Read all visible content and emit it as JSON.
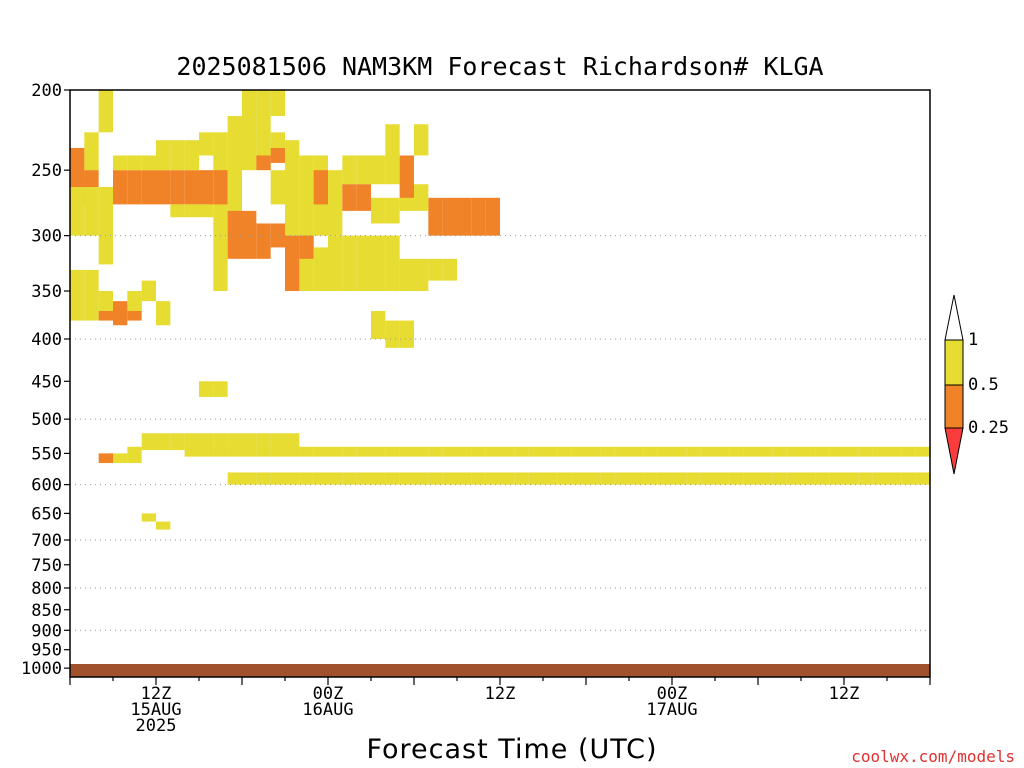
{
  "chart_data": {
    "type": "heatmap",
    "title": "2025081506 NAM3KM Forecast Richardson# KLGA",
    "xlabel": "Forecast Time (UTC)",
    "ylabel": "",
    "credit": "coolwx.com/models",
    "x_start_hours_from_init": 0,
    "x_end_hours_from_init": 60,
    "x_ticks": [
      {
        "hours_from_init": 6,
        "lines": [
          "12Z",
          "15AUG",
          "2025"
        ]
      },
      {
        "hours_from_init": 18,
        "lines": [
          "00Z",
          "16AUG"
        ]
      },
      {
        "hours_from_init": 30,
        "lines": [
          "12Z"
        ]
      },
      {
        "hours_from_init": 42,
        "lines": [
          "00Z",
          "17AUG"
        ]
      },
      {
        "hours_from_init": 54,
        "lines": [
          "12Z"
        ]
      }
    ],
    "y_scale": "log",
    "y_axis_inverted": true,
    "ylim": [
      1025,
      200
    ],
    "y_ticks": [
      200,
      250,
      300,
      350,
      400,
      450,
      500,
      550,
      600,
      650,
      700,
      750,
      800,
      850,
      900,
      950,
      1000
    ],
    "grid": {
      "horizontal_dotted": true,
      "levels": [
        300,
        400,
        500,
        600,
        700,
        800,
        900
      ]
    },
    "colorbar": {
      "location": "right",
      "tick_labels": [
        "1",
        "0.5",
        "0.25"
      ],
      "bins": [
        {
          "range": "> 1",
          "color": "#ffffff"
        },
        {
          "range": "0.5 - 1",
          "color": "#e6dc32"
        },
        {
          "range": "0.25 - 0.5",
          "color": "#f08228"
        },
        {
          "range": "< 0.25",
          "color": "#fa3c3c"
        }
      ]
    },
    "surface_color": "#a0522d",
    "cell_width_hours": 1,
    "cells": [
      [
        2,
        200,
        225,
        "y"
      ],
      [
        1,
        225,
        250,
        "y"
      ],
      [
        0,
        235,
        262,
        "o"
      ],
      [
        0,
        250,
        275,
        "o"
      ],
      [
        1,
        250,
        262,
        "o"
      ],
      [
        0,
        262,
        300,
        "y"
      ],
      [
        1,
        262,
        300,
        "y"
      ],
      [
        2,
        262,
        325,
        "y"
      ],
      [
        3,
        250,
        275,
        "o"
      ],
      [
        4,
        250,
        275,
        "o"
      ],
      [
        5,
        250,
        275,
        "o"
      ],
      [
        6,
        250,
        275,
        "o"
      ],
      [
        7,
        250,
        275,
        "o"
      ],
      [
        8,
        250,
        275,
        "o"
      ],
      [
        9,
        250,
        275,
        "o"
      ],
      [
        3,
        240,
        250,
        "y"
      ],
      [
        4,
        240,
        250,
        "y"
      ],
      [
        5,
        240,
        250,
        "y"
      ],
      [
        6,
        230,
        250,
        "y"
      ],
      [
        7,
        230,
        250,
        "y"
      ],
      [
        8,
        230,
        250,
        "y"
      ],
      [
        8,
        275,
        285,
        "y"
      ],
      [
        7,
        275,
        285,
        "y"
      ],
      [
        9,
        275,
        285,
        "y"
      ],
      [
        9,
        225,
        240,
        "y"
      ],
      [
        10,
        225,
        350,
        "y"
      ],
      [
        10,
        250,
        275,
        "o"
      ],
      [
        11,
        215,
        300,
        "y"
      ],
      [
        12,
        215,
        250,
        "y"
      ],
      [
        13,
        215,
        250,
        "y"
      ],
      [
        14,
        225,
        240,
        "y"
      ],
      [
        11,
        280,
        320,
        "o"
      ],
      [
        12,
        280,
        320,
        "o"
      ],
      [
        13,
        290,
        320,
        "o"
      ],
      [
        14,
        290,
        310,
        "o"
      ],
      [
        12,
        200,
        215,
        "y"
      ],
      [
        13,
        200,
        215,
        "y"
      ],
      [
        14,
        200,
        215,
        "y"
      ],
      [
        13,
        240,
        250,
        "o"
      ],
      [
        14,
        235,
        245,
        "o"
      ],
      [
        14,
        250,
        275,
        "y"
      ],
      [
        15,
        230,
        300,
        "y"
      ],
      [
        16,
        240,
        300,
        "y"
      ],
      [
        17,
        240,
        300,
        "y"
      ],
      [
        17,
        250,
        275,
        "o"
      ],
      [
        18,
        250,
        300,
        "y"
      ],
      [
        18,
        300,
        350,
        "y"
      ],
      [
        19,
        300,
        350,
        "y"
      ],
      [
        20,
        300,
        350,
        "y"
      ],
      [
        21,
        300,
        350,
        "y"
      ],
      [
        16,
        300,
        350,
        "y"
      ],
      [
        15,
        300,
        350,
        "o"
      ],
      [
        16,
        300,
        320,
        "o"
      ],
      [
        17,
        310,
        350,
        "y"
      ],
      [
        22,
        300,
        350,
        "y"
      ],
      [
        23,
        320,
        350,
        "y"
      ],
      [
        24,
        320,
        350,
        "y"
      ],
      [
        25,
        320,
        340,
        "y"
      ],
      [
        26,
        320,
        340,
        "y"
      ],
      [
        25,
        270,
        300,
        "o"
      ],
      [
        26,
        270,
        300,
        "o"
      ],
      [
        27,
        270,
        300,
        "o"
      ],
      [
        28,
        270,
        300,
        "o"
      ],
      [
        29,
        270,
        300,
        "o"
      ],
      [
        23,
        260,
        280,
        "y"
      ],
      [
        24,
        260,
        280,
        "y"
      ],
      [
        22,
        220,
        260,
        "y"
      ],
      [
        23,
        240,
        270,
        "o"
      ],
      [
        24,
        220,
        240,
        "y"
      ],
      [
        21,
        240,
        260,
        "y"
      ],
      [
        20,
        240,
        260,
        "y"
      ],
      [
        19,
        240,
        260,
        "y"
      ],
      [
        19,
        260,
        280,
        "o"
      ],
      [
        20,
        260,
        280,
        "o"
      ],
      [
        21,
        270,
        290,
        "y"
      ],
      [
        22,
        270,
        290,
        "y"
      ],
      [
        0,
        330,
        370,
        "y"
      ],
      [
        1,
        330,
        370,
        "y"
      ],
      [
        0,
        370,
        380,
        "y"
      ],
      [
        1,
        370,
        380,
        "y"
      ],
      [
        2,
        350,
        370,
        "y"
      ],
      [
        2,
        370,
        380,
        "o"
      ],
      [
        3,
        360,
        385,
        "o"
      ],
      [
        4,
        360,
        380,
        "o"
      ],
      [
        5,
        340,
        360,
        "y"
      ],
      [
        6,
        360,
        385,
        "y"
      ],
      [
        22,
        380,
        410,
        "y"
      ],
      [
        23,
        380,
        410,
        "y"
      ],
      [
        21,
        370,
        400,
        "y"
      ],
      [
        4,
        350,
        370,
        "y"
      ],
      [
        2,
        550,
        565,
        "o"
      ],
      [
        3,
        550,
        565,
        "y"
      ],
      [
        4,
        540,
        565,
        "y"
      ],
      [
        5,
        520,
        545,
        "y"
      ],
      [
        6,
        520,
        545,
        "y"
      ],
      [
        7,
        520,
        545,
        "y"
      ],
      [
        8,
        520,
        545,
        "y"
      ],
      [
        9,
        520,
        545,
        "y"
      ],
      [
        10,
        520,
        545,
        "y"
      ],
      [
        11,
        520,
        545,
        "y"
      ],
      [
        12,
        520,
        545,
        "y"
      ],
      [
        13,
        520,
        545,
        "y"
      ],
      [
        14,
        520,
        545,
        "y"
      ],
      [
        15,
        520,
        545,
        "y"
      ],
      [
        9,
        450,
        470,
        "y"
      ],
      [
        10,
        450,
        470,
        "y"
      ],
      [
        11,
        580,
        600,
        "y"
      ],
      [
        12,
        580,
        600,
        "y"
      ],
      [
        13,
        580,
        600,
        "y"
      ],
      [
        14,
        580,
        600,
        "y"
      ],
      [
        15,
        580,
        600,
        "y"
      ],
      [
        16,
        580,
        600,
        "y"
      ],
      [
        17,
        580,
        600,
        "y"
      ],
      [
        18,
        580,
        600,
        "y"
      ],
      [
        19,
        580,
        600,
        "y"
      ],
      [
        20,
        580,
        600,
        "y"
      ],
      [
        21,
        580,
        600,
        "y"
      ],
      [
        22,
        580,
        600,
        "y"
      ],
      [
        23,
        580,
        600,
        "y"
      ],
      [
        24,
        580,
        600,
        "y"
      ],
      [
        25,
        580,
        600,
        "y"
      ],
      [
        26,
        580,
        600,
        "y"
      ],
      [
        27,
        580,
        600,
        "y"
      ],
      [
        28,
        580,
        600,
        "y"
      ],
      [
        29,
        580,
        600,
        "y"
      ],
      [
        30,
        580,
        600,
        "y"
      ],
      [
        31,
        580,
        600,
        "y"
      ],
      [
        32,
        580,
        600,
        "y"
      ],
      [
        33,
        580,
        600,
        "y"
      ],
      [
        34,
        580,
        600,
        "y"
      ],
      [
        35,
        580,
        600,
        "y"
      ],
      [
        36,
        580,
        600,
        "y"
      ],
      [
        37,
        580,
        600,
        "y"
      ],
      [
        38,
        580,
        600,
        "y"
      ],
      [
        39,
        580,
        600,
        "y"
      ],
      [
        40,
        580,
        600,
        "y"
      ],
      [
        41,
        580,
        600,
        "y"
      ],
      [
        42,
        580,
        600,
        "y"
      ],
      [
        43,
        580,
        600,
        "y"
      ],
      [
        44,
        580,
        600,
        "y"
      ],
      [
        45,
        580,
        600,
        "y"
      ],
      [
        46,
        580,
        600,
        "y"
      ],
      [
        47,
        580,
        600,
        "y"
      ],
      [
        48,
        580,
        600,
        "y"
      ],
      [
        49,
        580,
        600,
        "y"
      ],
      [
        50,
        580,
        600,
        "y"
      ],
      [
        51,
        580,
        600,
        "y"
      ],
      [
        52,
        580,
        600,
        "y"
      ],
      [
        53,
        580,
        600,
        "y"
      ],
      [
        54,
        580,
        600,
        "y"
      ],
      [
        55,
        580,
        600,
        "y"
      ],
      [
        56,
        580,
        600,
        "y"
      ],
      [
        57,
        580,
        600,
        "y"
      ],
      [
        58,
        580,
        600,
        "y"
      ],
      [
        59,
        580,
        600,
        "y"
      ],
      [
        5,
        650,
        665,
        "y"
      ],
      [
        6,
        665,
        680,
        "y"
      ],
      [
        8,
        540,
        555,
        "y"
      ],
      [
        9,
        540,
        555,
        "y"
      ],
      [
        10,
        540,
        555,
        "y"
      ],
      [
        11,
        540,
        555,
        "y"
      ],
      [
        12,
        540,
        555,
        "y"
      ],
      [
        13,
        540,
        555,
        "y"
      ],
      [
        14,
        540,
        555,
        "y"
      ],
      [
        15,
        540,
        555,
        "y"
      ],
      [
        16,
        540,
        555,
        "y"
      ],
      [
        17,
        540,
        555,
        "y"
      ],
      [
        18,
        540,
        555,
        "y"
      ],
      [
        19,
        540,
        555,
        "y"
      ],
      [
        20,
        540,
        555,
        "y"
      ],
      [
        21,
        540,
        555,
        "y"
      ],
      [
        22,
        540,
        555,
        "y"
      ],
      [
        23,
        540,
        555,
        "y"
      ],
      [
        24,
        540,
        555,
        "y"
      ],
      [
        25,
        540,
        555,
        "y"
      ],
      [
        26,
        540,
        555,
        "y"
      ],
      [
        27,
        540,
        555,
        "y"
      ],
      [
        28,
        540,
        555,
        "y"
      ],
      [
        29,
        540,
        555,
        "y"
      ],
      [
        30,
        540,
        555,
        "y"
      ],
      [
        31,
        540,
        555,
        "y"
      ],
      [
        32,
        540,
        555,
        "y"
      ],
      [
        33,
        540,
        555,
        "y"
      ],
      [
        34,
        540,
        555,
        "y"
      ],
      [
        35,
        540,
        555,
        "y"
      ],
      [
        36,
        540,
        555,
        "y"
      ],
      [
        37,
        540,
        555,
        "y"
      ],
      [
        38,
        540,
        555,
        "y"
      ],
      [
        39,
        540,
        555,
        "y"
      ],
      [
        40,
        540,
        555,
        "y"
      ],
      [
        41,
        540,
        555,
        "y"
      ],
      [
        42,
        540,
        555,
        "y"
      ],
      [
        43,
        540,
        555,
        "y"
      ],
      [
        44,
        540,
        555,
        "y"
      ],
      [
        45,
        540,
        555,
        "y"
      ],
      [
        46,
        540,
        555,
        "y"
      ],
      [
        47,
        540,
        555,
        "y"
      ],
      [
        48,
        540,
        555,
        "y"
      ],
      [
        49,
        540,
        555,
        "y"
      ],
      [
        50,
        540,
        555,
        "y"
      ],
      [
        51,
        540,
        555,
        "y"
      ],
      [
        52,
        540,
        555,
        "y"
      ],
      [
        53,
        540,
        555,
        "y"
      ],
      [
        54,
        540,
        555,
        "y"
      ],
      [
        55,
        540,
        555,
        "y"
      ],
      [
        56,
        540,
        555,
        "y"
      ],
      [
        57,
        540,
        555,
        "y"
      ],
      [
        58,
        540,
        555,
        "y"
      ],
      [
        59,
        540,
        555,
        "y"
      ]
    ]
  }
}
